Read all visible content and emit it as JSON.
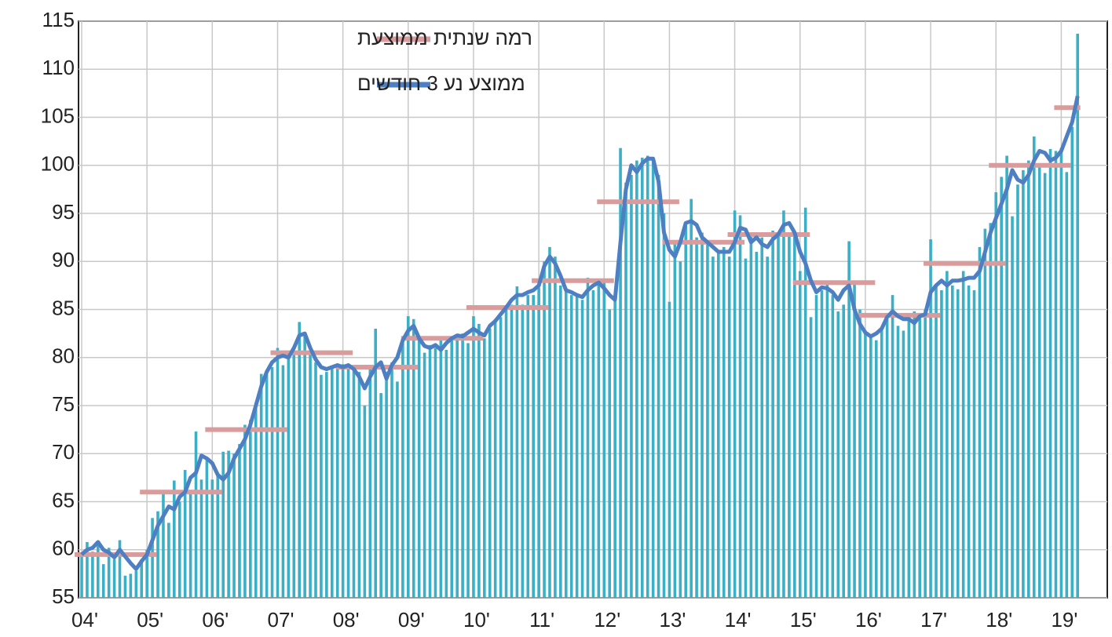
{
  "chart_data": {
    "type": "bar",
    "categories": [
      "04'",
      null,
      null,
      null,
      null,
      null,
      null,
      null,
      null,
      null,
      null,
      null,
      "05'",
      null,
      null,
      null,
      null,
      null,
      null,
      null,
      null,
      null,
      null,
      null,
      "06'",
      null,
      null,
      null,
      null,
      null,
      null,
      null,
      null,
      null,
      null,
      null,
      "07'",
      null,
      null,
      null,
      null,
      null,
      null,
      null,
      null,
      null,
      null,
      null,
      "08'",
      null,
      null,
      null,
      null,
      null,
      null,
      null,
      null,
      null,
      null,
      null,
      "09'",
      null,
      null,
      null,
      null,
      null,
      null,
      null,
      null,
      null,
      null,
      null,
      "10'",
      null,
      null,
      null,
      null,
      null,
      null,
      null,
      null,
      null,
      null,
      null,
      "11'",
      null,
      null,
      null,
      null,
      null,
      null,
      null,
      null,
      null,
      null,
      null,
      "12'",
      null,
      null,
      null,
      null,
      null,
      null,
      null,
      null,
      null,
      null,
      null,
      "13'",
      null,
      null,
      null,
      null,
      null,
      null,
      null,
      null,
      null,
      null,
      null,
      "14'",
      null,
      null,
      null,
      null,
      null,
      null,
      null,
      null,
      null,
      null,
      null,
      "15'",
      null,
      null,
      null,
      null,
      null,
      null,
      null,
      null,
      null,
      null,
      null,
      "16'",
      null,
      null,
      null,
      null,
      null,
      null,
      null,
      null,
      null,
      null,
      null,
      "17'",
      null,
      null,
      null,
      null,
      null,
      null,
      null,
      null,
      null,
      null,
      null,
      "18'",
      null,
      null,
      null,
      null,
      null,
      null,
      null,
      null,
      null,
      null,
      null,
      "19'",
      null,
      null,
      null
    ],
    "color": "#3aafc6",
    "values": [
      59.5,
      60.8,
      59.8,
      60.5,
      58.5,
      60.2,
      59.0,
      61.0,
      57.3,
      57.5,
      57.8,
      59.0,
      60.0,
      63.3,
      64.0,
      66.2,
      62.8,
      67.2,
      65.0,
      68.3,
      66.0,
      72.3,
      67.3,
      69.5,
      67.3,
      67.8,
      70.2,
      70.3,
      70.0,
      71.0,
      73.0,
      73.5,
      75.3,
      78.3,
      78.5,
      79.0,
      81.0,
      79.2,
      80.0,
      80.5,
      83.7,
      82.5,
      80.5,
      79.5,
      78.2,
      78.5,
      79.0,
      78.8,
      79.3,
      78.8,
      79.0,
      78.5,
      75.0,
      79.0,
      83.0,
      76.3,
      78.5,
      79.5,
      77.5,
      81.5,
      84.3,
      84.0,
      82.0,
      80.5,
      81.3,
      81.0,
      81.8,
      80.8,
      82.0,
      82.3,
      82.5,
      81.5,
      84.3,
      83.5,
      82.0,
      83.0,
      84.0,
      84.2,
      85.0,
      85.5,
      87.4,
      85.5,
      86.5,
      86.5,
      87.3,
      90.0,
      91.5,
      90.5,
      87.5,
      87.0,
      86.5,
      86.5,
      86.0,
      88.3,
      87.0,
      88.0,
      88.0,
      85.0,
      86.0,
      101.8,
      98.2,
      99.0,
      100.5,
      100.8,
      101.0,
      100.3,
      99.0,
      95.0,
      85.8,
      92.0,
      90.0,
      93.8,
      96.5,
      92.5,
      93.0,
      92.0,
      90.5,
      91.0,
      91.5,
      90.5,
      95.3,
      94.8,
      90.3,
      93.0,
      91.0,
      92.5,
      90.5,
      93.2,
      93.0,
      95.3,
      93.0,
      93.0,
      89.0,
      95.6,
      84.2,
      86.5,
      87.0,
      88.0,
      86.5,
      84.8,
      85.5,
      92.1,
      88.0,
      85.0,
      82.8,
      82.3,
      81.8,
      83.0,
      84.0,
      86.5,
      83.3,
      82.8,
      84.5,
      84.8,
      84.5,
      85.0,
      92.3,
      87.5,
      87.0,
      89.0,
      87.5,
      87.1,
      89.0,
      87.5,
      87.0,
      91.5,
      93.4,
      94.0,
      97.2,
      98.8,
      101.0,
      94.7,
      98.0,
      99.5,
      100.5,
      103.0,
      100.0,
      99.2,
      101.7,
      101.5,
      101.8,
      99.3,
      104.0,
      113.7
    ],
    "series": [
      {
        "name": "ממוצע נע 3 חודשים",
        "color": "#4d7fc2",
        "values": [
          59.5,
          60.0,
          60.2,
          60.8,
          60.0,
          59.7,
          59.2,
          60.0,
          59.3,
          58.6,
          58.0,
          58.8,
          59.5,
          61.0,
          62.5,
          63.5,
          64.5,
          64.2,
          65.5,
          66.0,
          67.5,
          68.0,
          69.8,
          69.5,
          69.0,
          67.8,
          67.3,
          68.0,
          69.5,
          70.5,
          71.5,
          73.0,
          75.0,
          77.0,
          78.5,
          79.5,
          80.0,
          80.2,
          80.0,
          81.0,
          82.3,
          82.5,
          81.0,
          79.8,
          79.0,
          78.8,
          79.0,
          79.2,
          79.0,
          79.2,
          78.8,
          78.0,
          76.8,
          78.0,
          79.0,
          79.5,
          77.8,
          79.2,
          80.0,
          81.8,
          82.8,
          83.3,
          82.0,
          81.2,
          81.0,
          81.3,
          80.8,
          81.5,
          82.0,
          82.3,
          82.2,
          82.6,
          83.0,
          82.6,
          82.3,
          83.3,
          83.8,
          84.5,
          85.2,
          86.0,
          86.5,
          86.5,
          86.8,
          87.0,
          87.5,
          89.5,
          90.5,
          89.8,
          88.5,
          87.0,
          86.8,
          86.5,
          86.3,
          87.0,
          87.5,
          87.8,
          87.2,
          86.5,
          86.0,
          92.0,
          97.5,
          100.0,
          99.3,
          100.2,
          100.7,
          100.7,
          98.3,
          93.0,
          91.2,
          90.5,
          92.0,
          94.0,
          94.2,
          93.8,
          92.5,
          92.0,
          91.5,
          91.0,
          91.0,
          91.0,
          92.0,
          93.5,
          93.3,
          92.0,
          92.5,
          91.8,
          91.5,
          92.3,
          92.8,
          93.8,
          94.0,
          93.0,
          91.0,
          89.8,
          88.0,
          86.8,
          87.3,
          87.2,
          86.8,
          86.0,
          87.0,
          87.5,
          85.0,
          83.5,
          82.6,
          82.2,
          82.5,
          83.0,
          84.2,
          84.8,
          84.3,
          84.0,
          84.0,
          83.6,
          84.3,
          84.5,
          86.8,
          87.5,
          88.0,
          87.5,
          88.0,
          88.0,
          88.1,
          88.3,
          88.3,
          89.0,
          91.0,
          93.0,
          94.5,
          96.0,
          97.5,
          99.5,
          98.5,
          98.2,
          99.0,
          100.5,
          101.5,
          101.3,
          100.5,
          100.8,
          101.5,
          103.0,
          104.5,
          107.2
        ]
      }
    ],
    "annual": {
      "name": "רמה שנתית ממוצעת",
      "color": "#d99b9b",
      "values": [
        59.5,
        66.0,
        72.5,
        80.5,
        79.0,
        82.0,
        85.2,
        88.0,
        96.2,
        92.0,
        92.8,
        87.8,
        84.4,
        89.8,
        100.0,
        106.0
      ]
    },
    "ylim": [
      55,
      115
    ],
    "yticks": [
      55,
      60,
      65,
      70,
      75,
      80,
      85,
      90,
      95,
      100,
      105,
      110,
      115
    ],
    "grid": true
  }
}
